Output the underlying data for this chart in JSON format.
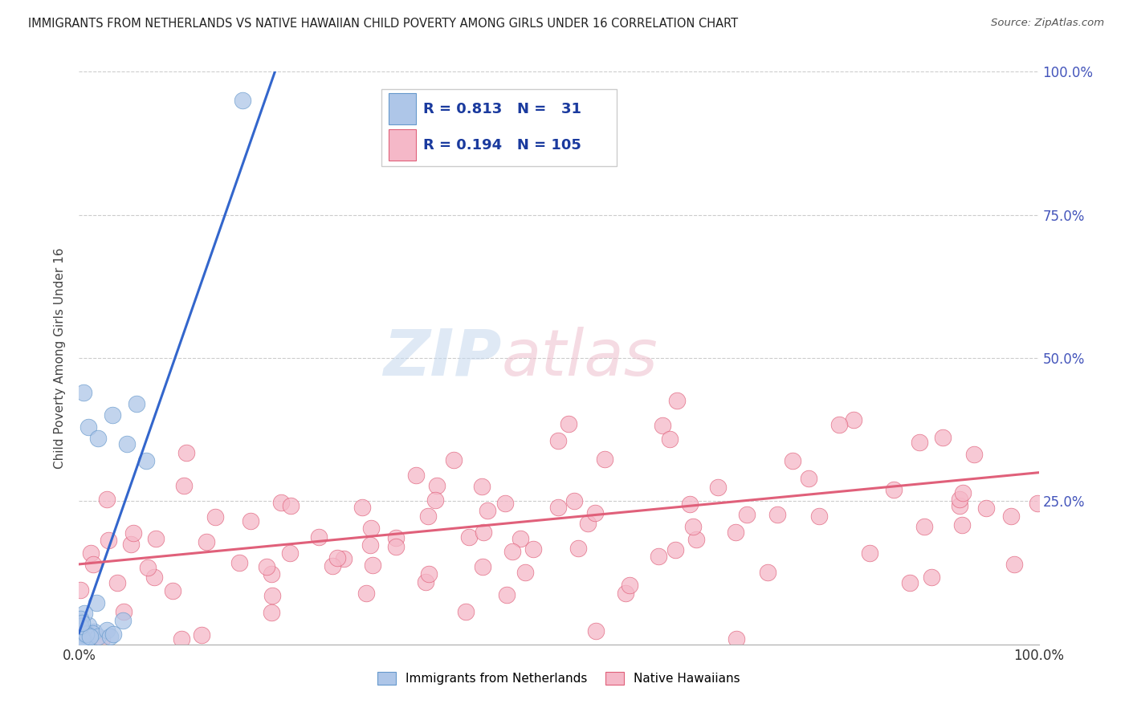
{
  "title": "IMMIGRANTS FROM NETHERLANDS VS NATIVE HAWAIIAN CHILD POVERTY AMONG GIRLS UNDER 16 CORRELATION CHART",
  "source": "Source: ZipAtlas.com",
  "ylabel": "Child Poverty Among Girls Under 16",
  "xlim": [
    0,
    1.0
  ],
  "ylim": [
    0,
    1.0
  ],
  "series1_label": "Immigrants from Netherlands",
  "series2_label": "Native Hawaiians",
  "series1_color": "#aec6e8",
  "series1_edge_color": "#6699cc",
  "series1_line_color": "#3366cc",
  "series2_color": "#f5b8c8",
  "series2_edge_color": "#e0607a",
  "series2_line_color": "#e0607a",
  "series1_R": 0.813,
  "series1_N": 31,
  "series2_R": 0.194,
  "series2_N": 105,
  "background_color": "#ffffff",
  "grid_color": "#cccccc",
  "title_color": "#222222",
  "legend_text_color": "#1a3a9e",
  "watermark_zip_color": "#8ab0d8",
  "watermark_atlas_color": "#e8a0b8",
  "right_tick_color": "#4455bb"
}
